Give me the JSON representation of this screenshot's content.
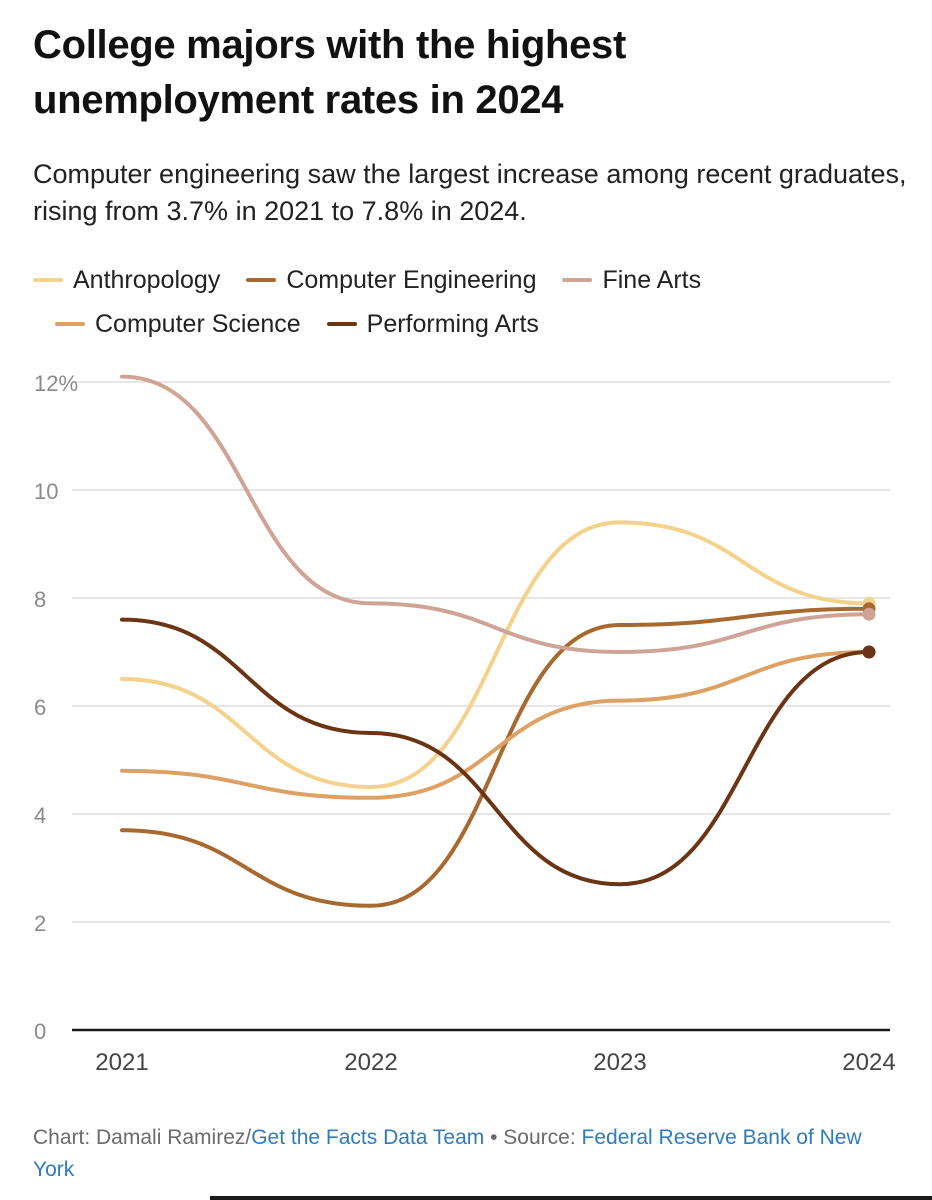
{
  "header": {
    "title": "College majors with the highest unemployment rates in 2024",
    "subtitle": "Computer engineering saw the largest increase among recent graduates, rising from 3.7% in 2021 to 7.8% in 2024."
  },
  "footer": {
    "chart_prefix": "Chart: Damali Ramirez/",
    "chart_team": "Get the Facts Data Team",
    "separator": " • Source: ",
    "source": "Federal Reserve Bank of New York"
  },
  "colors": {
    "anthropology": "#f3d28c",
    "computer_engineering": "#a8692f",
    "fine_arts": "#cfa497",
    "computer_science": "#dda263",
    "performing_arts": "#6b3414",
    "grid": "#e6e6e6",
    "axis": "#1a1a1a",
    "tick_text": "#8a8a8a",
    "year_text": "#444444",
    "link": "#2f7bbf"
  },
  "chart_data": {
    "type": "line",
    "title": "College majors with the highest unemployment rates in 2024",
    "xlabel": "",
    "ylabel": "",
    "x": [
      "2021",
      "2022",
      "2023",
      "2024"
    ],
    "ylim": [
      0,
      12
    ],
    "yticks": [
      0,
      2,
      4,
      6,
      8,
      10,
      12
    ],
    "ytick_labels": [
      "0",
      "2",
      "4",
      "6",
      "8",
      "10",
      "12%"
    ],
    "grid": true,
    "legend_position": "top",
    "series": [
      {
        "name": "Anthropology",
        "key": "anthropology",
        "values": [
          6.5,
          4.5,
          9.4,
          7.9
        ]
      },
      {
        "name": "Computer Engineering",
        "key": "computer_engineering",
        "values": [
          3.7,
          2.3,
          7.5,
          7.8
        ]
      },
      {
        "name": "Fine Arts",
        "key": "fine_arts",
        "values": [
          12.1,
          7.9,
          7.0,
          7.7
        ]
      },
      {
        "name": "Computer Science",
        "key": "computer_science",
        "values": [
          4.8,
          4.3,
          6.1,
          7.0
        ]
      },
      {
        "name": "Performing Arts",
        "key": "performing_arts",
        "values": [
          7.6,
          5.5,
          2.7,
          7.0
        ]
      }
    ]
  }
}
